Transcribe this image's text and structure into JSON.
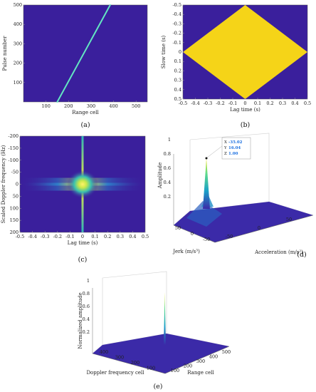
{
  "colors": {
    "background": "#3a1f9c",
    "diamond": "#f5d418",
    "line": "#63e6c2",
    "peak": "#f8e61a"
  },
  "chart_data": [
    {
      "type": "heatmap",
      "panel_label": "(a)",
      "xlabel": "Range cell",
      "ylabel": "Pulse number",
      "xlim": [
        0,
        550
      ],
      "ylim": [
        0,
        500
      ],
      "xticks": [
        "100",
        "200",
        "300",
        "400",
        "500"
      ],
      "yticks": [
        "100",
        "200",
        "300",
        "400",
        "500"
      ],
      "line": {
        "x": [
          150,
          385
        ],
        "y": [
          0,
          500
        ]
      }
    },
    {
      "type": "heatmap",
      "panel_label": "(b)",
      "xlabel": "Lag time (s)",
      "ylabel": "Slow time (s)",
      "xlim": [
        -0.5,
        0.5
      ],
      "ylim": [
        -0.5,
        0.5
      ],
      "y_reversed": true,
      "xticks": [
        "-0.5",
        "-0.4",
        "-0.3",
        "-0.2",
        "-0.1",
        "0",
        "0.1",
        "0.2",
        "0.3",
        "0.4",
        "0.5"
      ],
      "yticks": [
        "-0.5",
        "-0.4",
        "-0.3",
        "-0.2",
        "-0.1",
        "0",
        "0.1",
        "0.2",
        "0.3",
        "0.4",
        "0.5"
      ],
      "diamond": {
        "x": [
          0,
          0.5,
          0,
          -0.5
        ],
        "y": [
          -0.5,
          0,
          0.5,
          0
        ]
      }
    },
    {
      "type": "heatmap",
      "panel_label": "(c)",
      "xlabel": "Lag time (s)",
      "ylabel": "Scaled Doppler frequency (Hz)",
      "xlim": [
        -0.5,
        0.5
      ],
      "ylim": [
        -200,
        200
      ],
      "y_reversed": true,
      "xticks": [
        "-0.5",
        "-0.4",
        "-0.3",
        "-0.2",
        "-0.1",
        "0",
        "0.1",
        "0.2",
        "0.3",
        "0.4",
        "0.5"
      ],
      "yticks": [
        "-200",
        "-150",
        "-100",
        "-50",
        "0",
        "50",
        "100",
        "150",
        "200"
      ],
      "peak": {
        "x": 0,
        "y": 0
      }
    },
    {
      "type": "surface",
      "panel_label": "(d)",
      "xlabel": "Acceleration (m/s²)",
      "ylabel": "Jerk (m/s³)",
      "zlabel": "Amplitude",
      "zticks": [
        "0.2",
        "0.4",
        "0.6",
        "0.8",
        "1"
      ],
      "xticks": [
        "-50",
        "0",
        "50"
      ],
      "yticks": [
        "50",
        "0",
        "-50"
      ],
      "datatip": {
        "x": "-35.02",
        "y": "16.04",
        "z": "1.00"
      }
    },
    {
      "type": "surface",
      "panel_label": "(e)",
      "xlabel": "Range cell",
      "ylabel": "Doppler frequency cell",
      "zlabel": "Normalized amplitude",
      "zticks": [
        "0.2",
        "0.4",
        "0.6",
        "0.8",
        "1"
      ],
      "xticks": [
        "100",
        "200",
        "300",
        "400",
        "500"
      ],
      "yticks": [
        "400",
        "300",
        "200",
        "100"
      ]
    }
  ]
}
